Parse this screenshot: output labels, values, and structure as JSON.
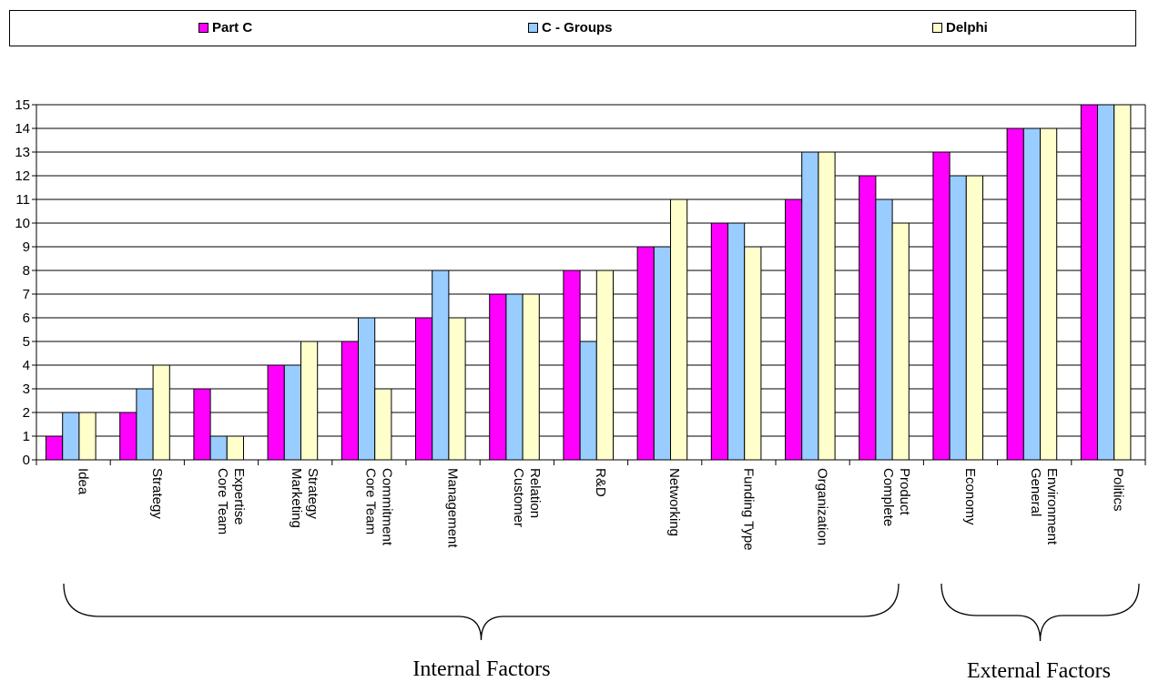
{
  "legend": {
    "position": "top",
    "items": [
      {
        "label": "Part C",
        "color": "#FF00FF"
      },
      {
        "label": "C - Groups",
        "color": "#99CCFF"
      },
      {
        "label": "Delphi",
        "color": "#FFFFCC"
      }
    ]
  },
  "chart_data": {
    "type": "bar",
    "title": "",
    "xlabel": "",
    "ylabel": "",
    "ylim": [
      0,
      15
    ],
    "yticks": [
      0,
      1,
      2,
      3,
      4,
      5,
      6,
      7,
      8,
      9,
      10,
      11,
      12,
      13,
      14,
      15
    ],
    "grid": true,
    "categories": [
      [
        "Idea"
      ],
      [
        "Strategy"
      ],
      [
        "Core Team",
        "Expertise"
      ],
      [
        "Marketing",
        "Strategy"
      ],
      [
        "Core Team",
        "Commitment"
      ],
      [
        "Management"
      ],
      [
        "Customer",
        "Relation"
      ],
      [
        "R&D"
      ],
      [
        "Networking"
      ],
      [
        "Funding Type"
      ],
      [
        "Organization"
      ],
      [
        "Complete",
        "Product"
      ],
      [
        "Economy"
      ],
      [
        "General",
        "Environment"
      ],
      [
        "Politics"
      ]
    ],
    "series": [
      {
        "name": "Part C",
        "color": "#FF00FF",
        "values": [
          1,
          2,
          3,
          4,
          5,
          6,
          7,
          8,
          9,
          10,
          11,
          12,
          13,
          14,
          15
        ]
      },
      {
        "name": "C - Groups",
        "color": "#99CCFF",
        "values": [
          2,
          3,
          1,
          4,
          6,
          8,
          7,
          5,
          9,
          10,
          13,
          11,
          12,
          14,
          15
        ]
      },
      {
        "name": "Delphi",
        "color": "#FFFFCC",
        "values": [
          2,
          4,
          1,
          5,
          3,
          6,
          7,
          8,
          11,
          9,
          13,
          10,
          12,
          14,
          15
        ]
      }
    ],
    "groups": [
      {
        "label": "Internal Factors",
        "from": 0,
        "to": 11
      },
      {
        "label": "External Factors",
        "from": 12,
        "to": 14
      }
    ]
  }
}
